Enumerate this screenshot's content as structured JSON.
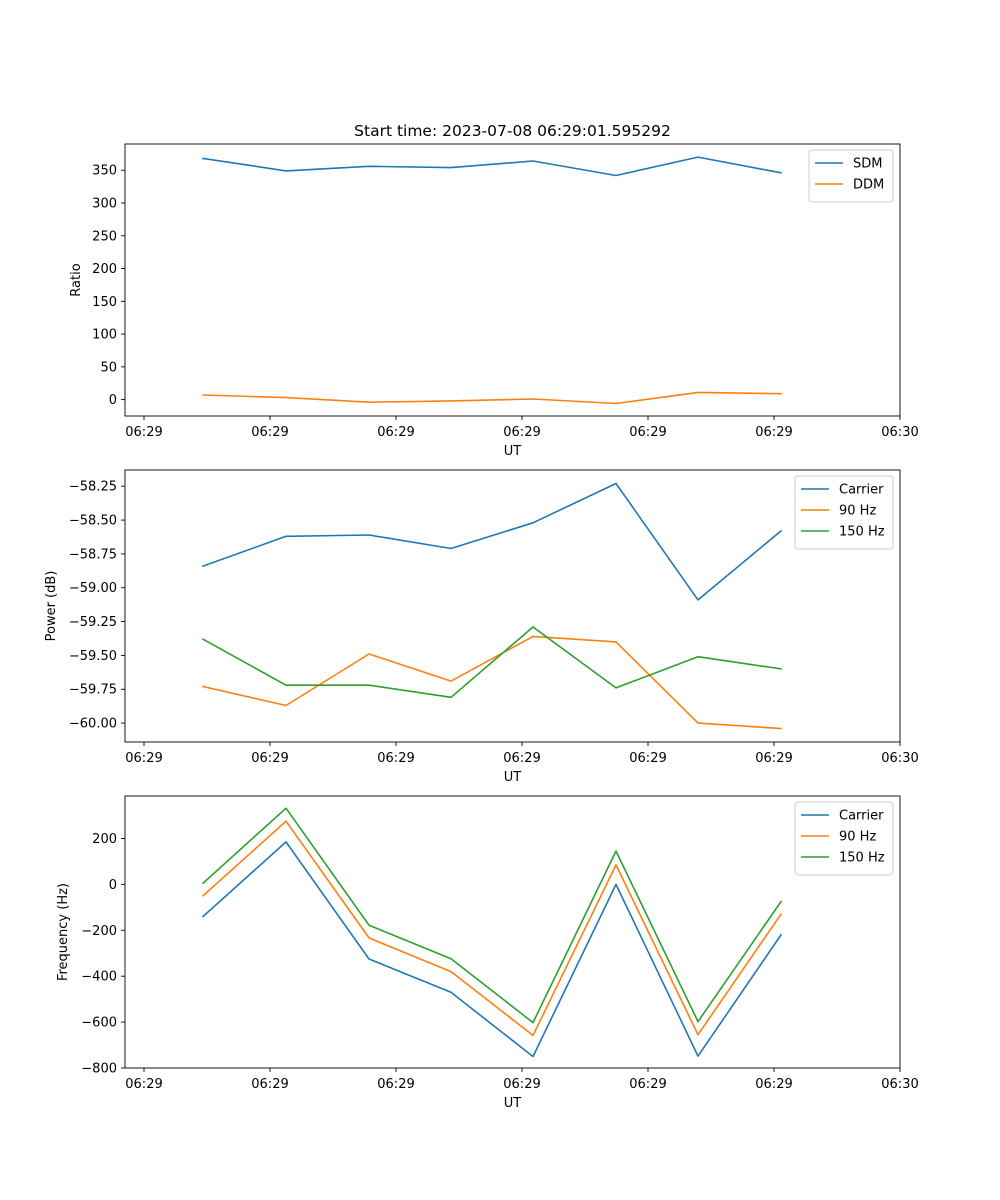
{
  "chart_data": [
    {
      "type": "line",
      "title": "Start time: 2023-07-08 06:29:01.595292",
      "xlabel": "UT",
      "ylabel": "Ratio",
      "x_tick_labels": [
        "06:29",
        "06:29",
        "06:29",
        "06:29",
        "06:29",
        "06:29",
        "06:30"
      ],
      "ylim": [
        -25,
        390
      ],
      "y_ticks": [
        0,
        50,
        100,
        150,
        200,
        250,
        300,
        350
      ],
      "y_tick_labels": [
        "0",
        "50",
        "100",
        "150",
        "200",
        "250",
        "300",
        "350"
      ],
      "legend_position": "top-right",
      "series": [
        {
          "name": "SDM",
          "color": "#1f77b4",
          "values": [
            368,
            349,
            356,
            354,
            364,
            342,
            370,
            346
          ]
        },
        {
          "name": "DDM",
          "color": "#ff7f0e",
          "values": [
            7,
            3,
            -4,
            -2,
            1,
            -6,
            11,
            9
          ]
        }
      ]
    },
    {
      "type": "line",
      "title": "",
      "xlabel": "UT",
      "ylabel": "Power (dB)",
      "x_tick_labels": [
        "06:29",
        "06:29",
        "06:29",
        "06:29",
        "06:29",
        "06:29",
        "06:30"
      ],
      "ylim": [
        -60.14,
        -58.13
      ],
      "y_ticks": [
        -60.0,
        -59.75,
        -59.5,
        -59.25,
        -59.0,
        -58.75,
        -58.5,
        -58.25
      ],
      "y_tick_labels": [
        "−60.00",
        "−59.75",
        "−59.50",
        "−59.25",
        "−59.00",
        "−58.75",
        "−58.50",
        "−58.25"
      ],
      "legend_position": "top-right",
      "series": [
        {
          "name": "Carrier",
          "color": "#1f77b4",
          "values": [
            -58.84,
            -58.62,
            -58.61,
            -58.71,
            -58.52,
            -58.23,
            -59.09,
            -58.58
          ]
        },
        {
          "name": "90 Hz",
          "color": "#ff7f0e",
          "values": [
            -59.73,
            -59.87,
            -59.49,
            -59.69,
            -59.36,
            -59.4,
            -60.0,
            -60.04
          ]
        },
        {
          "name": "150 Hz",
          "color": "#2ca02c",
          "values": [
            -59.38,
            -59.72,
            -59.72,
            -59.81,
            -59.29,
            -59.74,
            -59.51,
            -59.6
          ]
        }
      ]
    },
    {
      "type": "line",
      "title": "",
      "xlabel": "UT",
      "ylabel": "Frequency (Hz)",
      "x_tick_labels": [
        "06:29",
        "06:29",
        "06:29",
        "06:29",
        "06:29",
        "06:29",
        "06:30"
      ],
      "ylim": [
        -800,
        385
      ],
      "y_ticks": [
        -800,
        -600,
        -400,
        -200,
        0,
        200
      ],
      "y_tick_labels": [
        "−800",
        "−600",
        "−400",
        "−200",
        "0",
        "200"
      ],
      "legend_position": "top-right",
      "series": [
        {
          "name": "Carrier",
          "color": "#1f77b4",
          "values": [
            -140,
            185,
            -325,
            -470,
            -750,
            0,
            -748,
            -220
          ]
        },
        {
          "name": "90 Hz",
          "color": "#ff7f0e",
          "values": [
            -50,
            275,
            -233,
            -380,
            -658,
            85,
            -655,
            -130
          ]
        },
        {
          "name": "150 Hz",
          "color": "#2ca02c",
          "values": [
            5,
            332,
            -178,
            -324,
            -602,
            145,
            -598,
            -75
          ]
        }
      ]
    }
  ]
}
